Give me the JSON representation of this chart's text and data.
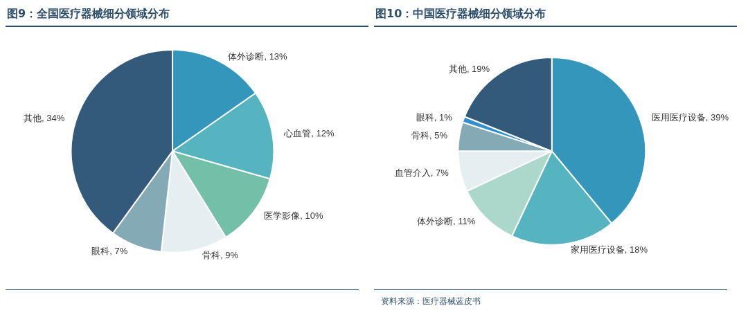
{
  "chart_data": [
    {
      "type": "pie",
      "title": "图9：全国医疗器械细分领域分布",
      "categories": [
        "体外诊断",
        "心血管",
        "医学影像",
        "骨科",
        "眼科",
        "其他"
      ],
      "values": [
        13,
        12,
        10,
        9,
        7,
        34
      ],
      "value_labels": [
        "13%",
        "12%",
        "10%",
        "9%",
        "7%",
        "34%"
      ],
      "colors": [
        "#3596bc",
        "#56b4c1",
        "#74bfa8",
        "#e5eef0",
        "#84abb5",
        "#335a7a"
      ],
      "legend": false
    },
    {
      "type": "pie",
      "title": "图10：中国医疗器械细分领域分布",
      "categories": [
        "医用医疗设备",
        "家用医疗设备",
        "体外诊断",
        "血管介入",
        "骨科",
        "眼科",
        "其他"
      ],
      "values": [
        39,
        18,
        11,
        7,
        5,
        1,
        19
      ],
      "value_labels": [
        "39%",
        "18%",
        "11%",
        "7%",
        "5%",
        "1%",
        "19%"
      ],
      "colors": [
        "#3596bc",
        "#56b4c1",
        "#acd7cb",
        "#e5eef0",
        "#84abb5",
        "#2f8fd0",
        "#335a7a"
      ],
      "legend": false,
      "annotations": [
        "资料来源：医疗器械蓝皮书"
      ]
    }
  ]
}
